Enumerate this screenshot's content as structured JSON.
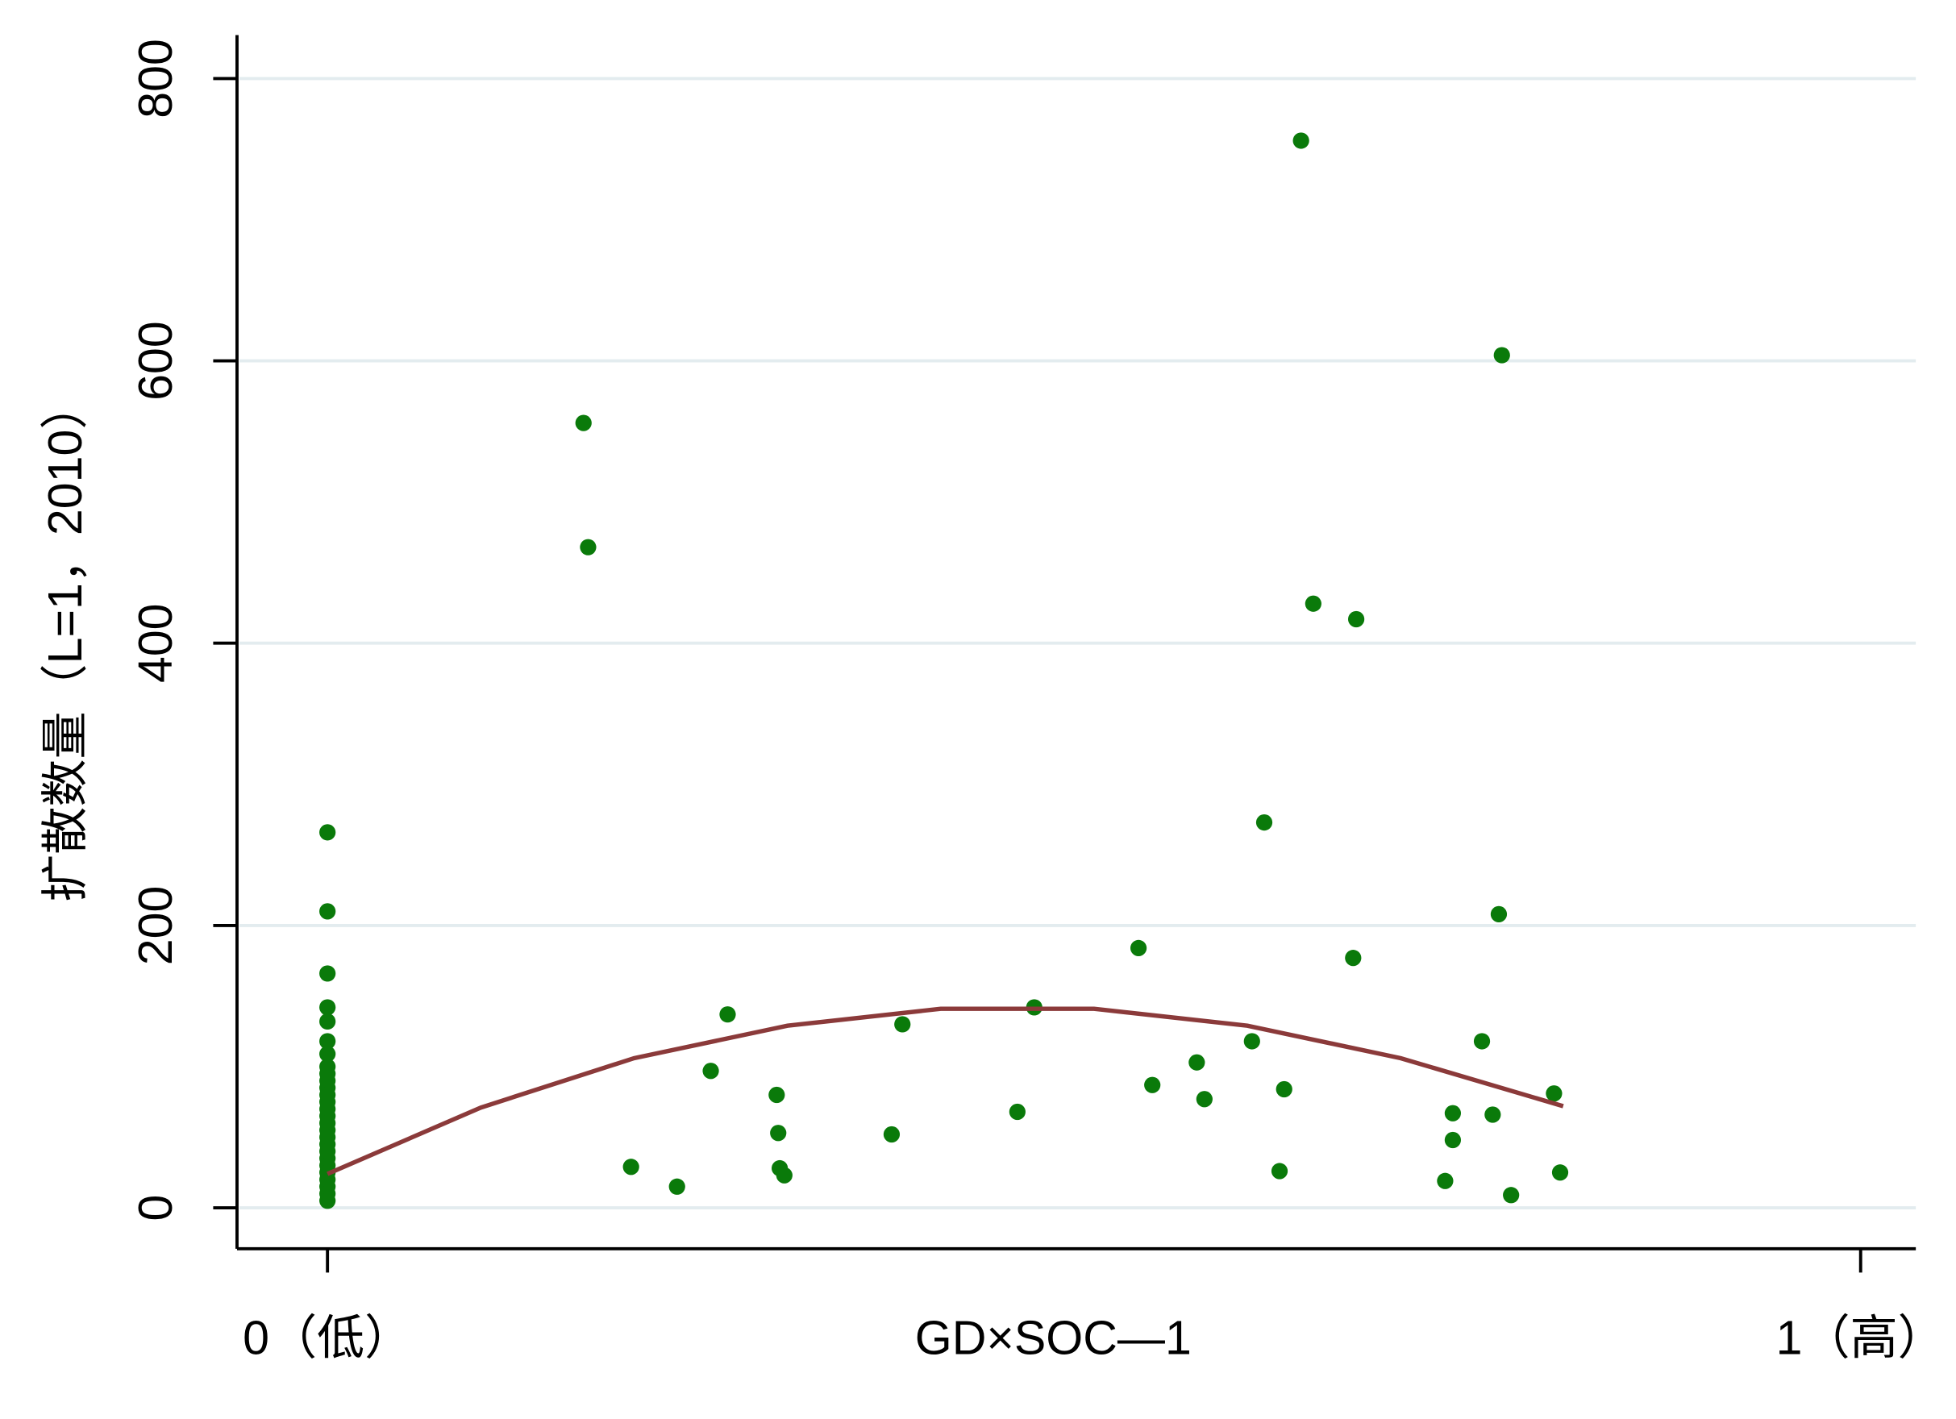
{
  "chart_data": {
    "type": "scatter",
    "xlabel": "GD×SOC—1",
    "ylabel": "扩散数量（L=1，2010）",
    "xlim": [
      -0.059,
      1.036
    ],
    "ylim": [
      -29,
      829
    ],
    "xticks": [
      {
        "value": 0,
        "label": "0（低）"
      },
      {
        "value": 1,
        "label": "1（高）"
      }
    ],
    "yticks": [
      0,
      200,
      400,
      600,
      800
    ],
    "grid": true,
    "series": [
      {
        "type": "scatter",
        "color": "#0a7a0a",
        "x": [
          0,
          0,
          0,
          0,
          0,
          0,
          0,
          0,
          0,
          0,
          0,
          0,
          0,
          0,
          0,
          0,
          0,
          0,
          0,
          0,
          0,
          0,
          0,
          0,
          0,
          0,
          0,
          0.167,
          0.17,
          0.198,
          0.228,
          0.25,
          0.261,
          0.293,
          0.294,
          0.295,
          0.298,
          0.368,
          0.375,
          0.45,
          0.461,
          0.529,
          0.538,
          0.567,
          0.572,
          0.603,
          0.611,
          0.621,
          0.624,
          0.635,
          0.643,
          0.669,
          0.671,
          0.729,
          0.734,
          0.734,
          0.753,
          0.76,
          0.764,
          0.766,
          0.772,
          0.8,
          0.804
        ],
        "values": [
          266,
          210,
          166,
          142,
          132,
          118,
          109,
          100,
          95,
          90,
          85,
          80,
          75,
          70,
          65,
          60,
          55,
          50,
          45,
          40,
          35,
          30,
          25,
          20,
          15,
          10,
          5,
          556,
          468,
          29,
          15,
          97,
          137,
          80,
          53,
          28,
          23,
          52,
          130,
          68,
          142,
          184,
          87,
          103,
          77,
          118,
          273,
          26,
          84,
          756,
          428,
          177,
          417,
          19,
          67,
          48,
          118,
          66,
          208,
          604,
          9,
          81,
          25
        ]
      },
      {
        "type": "line",
        "color": "#8b3a3a",
        "x": [
          0,
          0.1,
          0.2,
          0.3,
          0.4,
          0.5,
          0.6,
          0.7,
          0.806
        ],
        "values": [
          24,
          71,
          106,
          129,
          141,
          141,
          129,
          106,
          72
        ]
      }
    ]
  }
}
